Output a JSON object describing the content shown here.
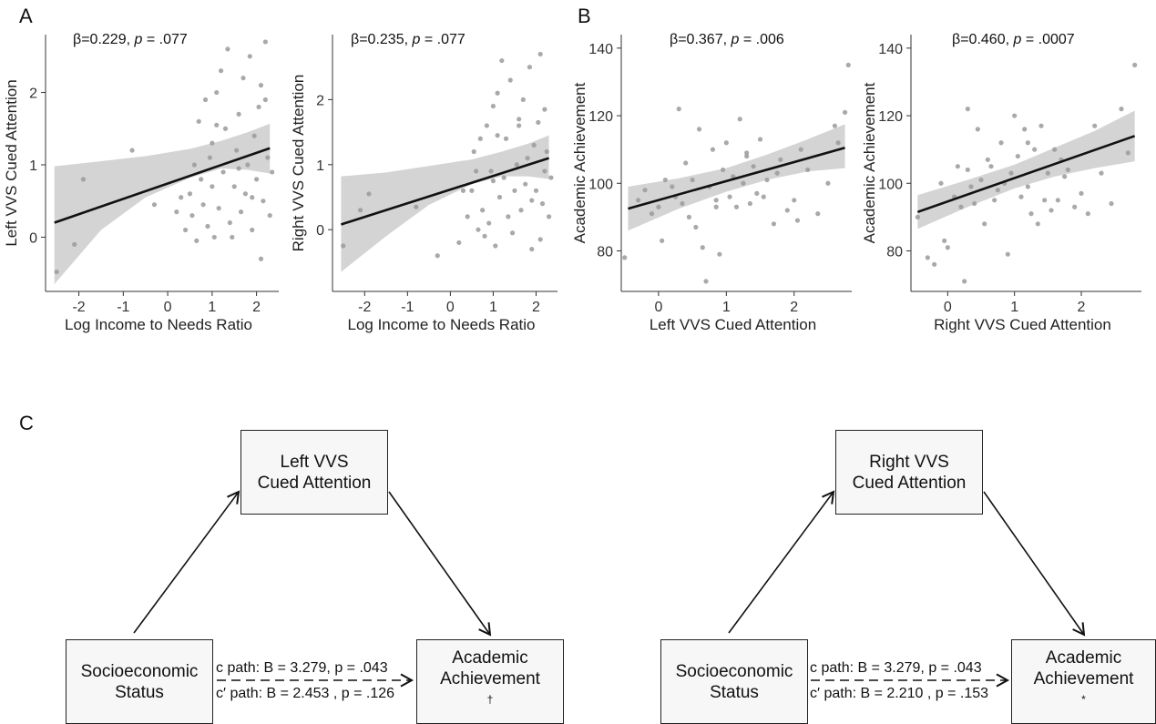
{
  "panel_labels": {
    "a": "A",
    "b": "B",
    "c": "C"
  },
  "colors": {
    "ribbon": "#d4d4d4",
    "point": "#9a9a9a",
    "line": "#111111",
    "axis": "#333333",
    "box_fill": "#f7f7f7"
  },
  "chart_data": [
    {
      "type": "scatter",
      "annotation": "β=0.229, p = .077",
      "annotation_parts": [
        "β=0.229, ",
        "p",
        " = .077"
      ],
      "xlabel": "Log Income to Needs Ratio",
      "ylabel": "Left VVS Cued Attention",
      "xlim": [
        -2.75,
        2.5
      ],
      "ylim": [
        -0.75,
        2.8
      ],
      "xticks": [
        -2,
        -1,
        0,
        1,
        2
      ],
      "yticks": [
        0,
        1,
        2
      ],
      "fit": {
        "x0": -2.55,
        "y0": 0.2,
        "x1": 2.3,
        "y1": 1.23
      },
      "ci": [
        [
          -2.55,
          -0.65,
          0.98
        ],
        [
          -1.5,
          0.1,
          1.05
        ],
        [
          -0.5,
          0.55,
          1.12
        ],
        [
          0.5,
          0.82,
          1.22
        ],
        [
          1.2,
          0.95,
          1.33
        ],
        [
          1.8,
          0.93,
          1.45
        ],
        [
          2.3,
          0.88,
          1.57
        ]
      ],
      "points": [
        [
          -2.5,
          -0.48
        ],
        [
          -1.9,
          0.8
        ],
        [
          -2.1,
          -0.1
        ],
        [
          -0.8,
          1.2
        ],
        [
          -0.3,
          0.45
        ],
        [
          0.2,
          0.35
        ],
        [
          0.4,
          0.1
        ],
        [
          0.5,
          0.6
        ],
        [
          0.55,
          0.3
        ],
        [
          0.6,
          1.0
        ],
        [
          0.7,
          1.6
        ],
        [
          0.75,
          0.8
        ],
        [
          0.8,
          0.45
        ],
        [
          0.85,
          1.9
        ],
        [
          0.9,
          0.15
        ],
        [
          0.95,
          1.1
        ],
        [
          1.0,
          1.3
        ],
        [
          1.05,
          0.0
        ],
        [
          1.1,
          2.0
        ],
        [
          1.15,
          0.4
        ],
        [
          1.2,
          2.3
        ],
        [
          1.25,
          0.9
        ],
        [
          1.3,
          1.5
        ],
        [
          1.35,
          2.6
        ],
        [
          1.4,
          0.2
        ],
        [
          1.5,
          0.7
        ],
        [
          1.55,
          1.2
        ],
        [
          1.6,
          1.7
        ],
        [
          1.65,
          0.35
        ],
        [
          1.7,
          2.2
        ],
        [
          1.75,
          0.6
        ],
        [
          1.8,
          1.0
        ],
        [
          1.85,
          2.5
        ],
        [
          1.9,
          0.1
        ],
        [
          1.95,
          1.4
        ],
        [
          2.0,
          0.8
        ],
        [
          2.05,
          1.8
        ],
        [
          2.1,
          2.1
        ],
        [
          2.15,
          0.5
        ],
        [
          2.2,
          2.7
        ],
        [
          2.25,
          1.1
        ],
        [
          2.3,
          0.3
        ],
        [
          2.35,
          0.9
        ],
        [
          1.45,
          0.0
        ],
        [
          0.65,
          -0.05
        ],
        [
          1.0,
          0.7
        ],
        [
          2.1,
          -0.3
        ],
        [
          1.9,
          0.55
        ],
        [
          1.1,
          1.55
        ],
        [
          0.3,
          0.55
        ],
        [
          1.6,
          0.95
        ],
        [
          2.2,
          1.9
        ]
      ]
    },
    {
      "type": "scatter",
      "annotation": "β=0.235, p = .077",
      "annotation_parts": [
        "β=0.235, ",
        "p",
        " = .077"
      ],
      "xlabel": "Log Income to Needs Ratio",
      "ylabel": "Right VVS Cued Attention",
      "xlim": [
        -2.75,
        2.5
      ],
      "ylim": [
        -0.95,
        3.0
      ],
      "xticks": [
        -2,
        -1,
        0,
        1,
        2
      ],
      "yticks": [
        0,
        1,
        2
      ],
      "fit": {
        "x0": -2.55,
        "y0": 0.08,
        "x1": 2.3,
        "y1": 1.1
      },
      "ci": [
        [
          -2.55,
          -0.65,
          0.82
        ],
        [
          -1.5,
          -0.1,
          0.88
        ],
        [
          -0.5,
          0.38,
          0.98
        ],
        [
          0.5,
          0.7,
          1.08
        ],
        [
          1.2,
          0.82,
          1.2
        ],
        [
          1.8,
          0.82,
          1.32
        ],
        [
          2.3,
          0.78,
          1.45
        ]
      ],
      "points": [
        [
          -2.5,
          -0.25
        ],
        [
          -1.9,
          0.55
        ],
        [
          -2.1,
          0.3
        ],
        [
          -0.8,
          0.35
        ],
        [
          -0.3,
          -0.4
        ],
        [
          0.2,
          -0.2
        ],
        [
          0.4,
          0.2
        ],
        [
          0.5,
          0.6
        ],
        [
          0.55,
          1.2
        ],
        [
          0.6,
          0.9
        ],
        [
          0.7,
          1.4
        ],
        [
          0.75,
          0.3
        ],
        [
          0.8,
          -0.1
        ],
        [
          0.85,
          1.6
        ],
        [
          0.9,
          0.1
        ],
        [
          0.95,
          0.9
        ],
        [
          1.0,
          1.9
        ],
        [
          1.05,
          -0.25
        ],
        [
          1.1,
          2.1
        ],
        [
          1.15,
          0.5
        ],
        [
          1.2,
          2.6
        ],
        [
          1.25,
          0.8
        ],
        [
          1.3,
          1.4
        ],
        [
          1.35,
          0.2
        ],
        [
          1.4,
          2.3
        ],
        [
          1.5,
          0.6
        ],
        [
          1.55,
          1.0
        ],
        [
          1.6,
          1.7
        ],
        [
          1.65,
          0.3
        ],
        [
          1.7,
          2.0
        ],
        [
          1.75,
          0.7
        ],
        [
          1.8,
          1.1
        ],
        [
          1.85,
          2.5
        ],
        [
          1.9,
          -0.3
        ],
        [
          1.95,
          1.3
        ],
        [
          2.0,
          0.6
        ],
        [
          2.05,
          1.65
        ],
        [
          2.1,
          2.7
        ],
        [
          2.15,
          0.4
        ],
        [
          2.2,
          0.9
        ],
        [
          2.25,
          1.2
        ],
        [
          2.3,
          0.2
        ],
        [
          2.35,
          0.8
        ],
        [
          1.45,
          -0.05
        ],
        [
          0.65,
          0.0
        ],
        [
          1.0,
          0.75
        ],
        [
          2.1,
          -0.15
        ],
        [
          1.9,
          0.45
        ],
        [
          1.1,
          1.45
        ],
        [
          0.3,
          0.6
        ],
        [
          1.6,
          1.6
        ],
        [
          2.2,
          1.85
        ]
      ]
    },
    {
      "type": "scatter",
      "annotation": "β=0.367, p = .006",
      "annotation_parts": [
        "β=0.367, ",
        "p",
        " = .006"
      ],
      "xlabel": "Left VVS Cued Attention",
      "ylabel": "Academic Achievement",
      "xlim": [
        -0.55,
        2.85
      ],
      "ylim": [
        68,
        144
      ],
      "xticks": [
        0,
        1,
        2
      ],
      "yticks": [
        80,
        100,
        120,
        140
      ],
      "fit": {
        "x0": -0.45,
        "y0": 92.5,
        "x1": 2.75,
        "y1": 110.5
      },
      "ci": [
        [
          -0.45,
          86.0,
          99.0
        ],
        [
          0.3,
          92.5,
          101.5
        ],
        [
          1.0,
          97.5,
          104.5
        ],
        [
          1.6,
          101.0,
          108.5
        ],
        [
          2.2,
          103.5,
          113.0
        ],
        [
          2.75,
          104.5,
          117.5
        ]
      ],
      "points": [
        [
          -0.5,
          78
        ],
        [
          -0.3,
          95
        ],
        [
          -0.2,
          98
        ],
        [
          -0.1,
          91
        ],
        [
          0.0,
          93
        ],
        [
          0.05,
          83
        ],
        [
          0.1,
          101
        ],
        [
          0.2,
          99
        ],
        [
          0.3,
          122
        ],
        [
          0.35,
          94
        ],
        [
          0.4,
          106
        ],
        [
          0.45,
          90
        ],
        [
          0.5,
          101
        ],
        [
          0.55,
          87
        ],
        [
          0.6,
          116
        ],
        [
          0.65,
          81
        ],
        [
          0.7,
          71
        ],
        [
          0.75,
          99
        ],
        [
          0.8,
          110
        ],
        [
          0.85,
          95
        ],
        [
          0.9,
          79
        ],
        [
          0.95,
          104
        ],
        [
          1.0,
          112
        ],
        [
          1.05,
          96
        ],
        [
          1.1,
          102
        ],
        [
          1.15,
          93
        ],
        [
          1.2,
          119
        ],
        [
          1.25,
          100
        ],
        [
          1.3,
          109
        ],
        [
          1.35,
          94
        ],
        [
          1.4,
          105
        ],
        [
          1.45,
          97
        ],
        [
          1.5,
          113
        ],
        [
          1.55,
          96
        ],
        [
          1.6,
          101
        ],
        [
          1.7,
          88
        ],
        [
          1.75,
          103
        ],
        [
          1.8,
          107
        ],
        [
          1.9,
          92
        ],
        [
          2.0,
          95
        ],
        [
          2.05,
          89
        ],
        [
          2.1,
          110
        ],
        [
          2.2,
          104
        ],
        [
          2.35,
          91
        ],
        [
          2.5,
          100
        ],
        [
          2.6,
          117
        ],
        [
          2.65,
          112
        ],
        [
          2.8,
          135
        ],
        [
          2.75,
          121
        ],
        [
          1.3,
          108
        ],
        [
          0.25,
          96
        ],
        [
          0.85,
          93
        ]
      ]
    },
    {
      "type": "scatter",
      "annotation": "β=0.460, p = .0007",
      "annotation_parts": [
        "β=0.460, ",
        "p",
        " = .0007"
      ],
      "xlabel": "Right VVS Cued Attention",
      "ylabel": "Academic Achievement",
      "xlim": [
        -0.55,
        2.9
      ],
      "ylim": [
        68,
        144
      ],
      "xticks": [
        0,
        1,
        2
      ],
      "yticks": [
        80,
        100,
        120,
        140
      ],
      "fit": {
        "x0": -0.45,
        "y0": 91.5,
        "x1": 2.8,
        "y1": 114.0
      },
      "ci": [
        [
          -0.45,
          86.5,
          96.5
        ],
        [
          0.3,
          93.0,
          101.0
        ],
        [
          1.0,
          98.5,
          105.5
        ],
        [
          1.6,
          102.0,
          110.5
        ],
        [
          2.2,
          104.5,
          115.5
        ],
        [
          2.8,
          106.5,
          121.5
        ]
      ],
      "points": [
        [
          -0.45,
          90
        ],
        [
          -0.3,
          78
        ],
        [
          -0.2,
          76
        ],
        [
          -0.1,
          100
        ],
        [
          -0.05,
          83
        ],
        [
          0.0,
          81
        ],
        [
          0.1,
          96
        ],
        [
          0.15,
          105
        ],
        [
          0.2,
          93
        ],
        [
          0.25,
          71
        ],
        [
          0.3,
          122
        ],
        [
          0.35,
          99
        ],
        [
          0.4,
          94
        ],
        [
          0.45,
          116
        ],
        [
          0.5,
          101
        ],
        [
          0.55,
          88
        ],
        [
          0.6,
          107
        ],
        [
          0.65,
          105
        ],
        [
          0.7,
          95
        ],
        [
          0.75,
          98
        ],
        [
          0.8,
          112
        ],
        [
          0.85,
          100
        ],
        [
          0.9,
          79
        ],
        [
          0.95,
          103
        ],
        [
          1.0,
          120
        ],
        [
          1.05,
          108
        ],
        [
          1.1,
          96
        ],
        [
          1.15,
          116
        ],
        [
          1.2,
          99
        ],
        [
          1.25,
          91
        ],
        [
          1.3,
          110
        ],
        [
          1.35,
          88
        ],
        [
          1.4,
          117
        ],
        [
          1.45,
          95
        ],
        [
          1.5,
          103
        ],
        [
          1.55,
          92
        ],
        [
          1.6,
          110
        ],
        [
          1.65,
          95
        ],
        [
          1.7,
          107
        ],
        [
          1.75,
          102
        ],
        [
          1.8,
          104
        ],
        [
          1.9,
          93
        ],
        [
          2.0,
          97
        ],
        [
          2.1,
          91
        ],
        [
          2.2,
          117
        ],
        [
          2.3,
          103
        ],
        [
          2.45,
          94
        ],
        [
          2.6,
          122
        ],
        [
          2.7,
          109
        ],
        [
          2.8,
          135
        ],
        [
          1.2,
          112
        ],
        [
          0.3,
          104
        ]
      ]
    }
  ],
  "mediation": [
    {
      "mediator": [
        "Left VVS",
        "Cued Attention"
      ],
      "predictor": [
        "Socioeconomic",
        "Status"
      ],
      "outcome": [
        "Academic",
        "Achievement"
      ],
      "outcome_mark": "†",
      "c_path": "c path: B = 3.279, p = .043",
      "c_prime_path": "c′ path: B = 2.453 , p = .126"
    },
    {
      "mediator": [
        "Right VVS",
        "Cued Attention"
      ],
      "predictor": [
        "Socioeconomic",
        "Status"
      ],
      "outcome": [
        "Academic",
        "Achievement"
      ],
      "outcome_mark": "*",
      "c_path": "c path: B = 3.279, p = .043",
      "c_prime_path": "c′ path: B = 2.210 , p = .153"
    }
  ]
}
